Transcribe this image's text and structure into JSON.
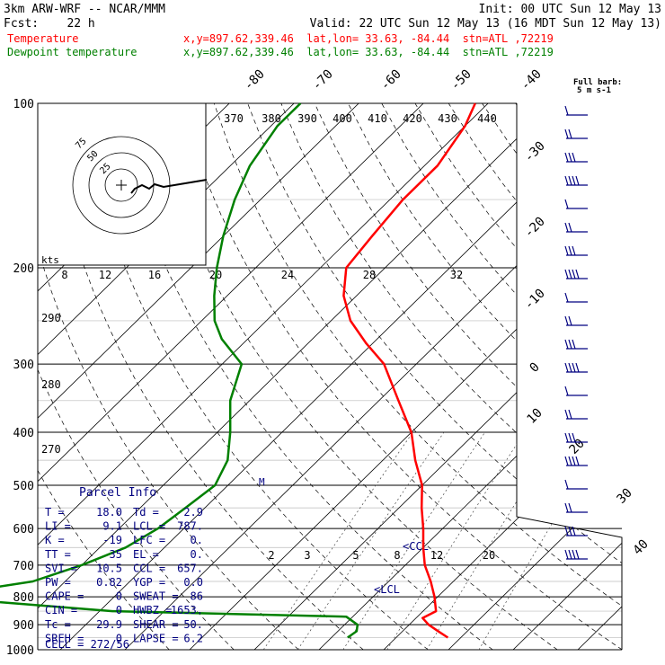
{
  "header": {
    "line1_left": "3km ARW-WRF -- NCAR/MMM",
    "line1_right": "Init: 00 UTC Sun 12 May 13",
    "line2_left": "Fcst:    22 h",
    "line2_right": "Valid: 22 UTC Sun 12 May 13 (16 MDT Sun 12 May 13)",
    "series_rows": [
      {
        "name": "Temperature",
        "info": "x,y=897.62,339.46  lat,lon= 33.63, -84.44  stn=ATL ,72219",
        "color": "#ff0000"
      },
      {
        "name": "Dewpoint temperature",
        "info": "x,y=897.62,339.46  lat,lon= 33.63, -84.44  stn=ATL ,72219",
        "color": "#008000"
      }
    ]
  },
  "barb_legend": {
    "line1": "Full barb:",
    "line2": "5 m s-1"
  },
  "hodograph": {
    "units": "kts",
    "ring_labels": [
      "75",
      "50",
      "25"
    ]
  },
  "colors": {
    "temperature": "#ff0000",
    "dewpoint": "#008000",
    "barbs": "#000080",
    "grid": "#000000"
  },
  "chart_data": {
    "type": "line",
    "pressure_axis": {
      "labels": [
        "100",
        "200",
        "300",
        "400",
        "500",
        "600",
        "700",
        "800",
        "900",
        "1000"
      ]
    },
    "temperature_isotherm_labels": [
      "-80",
      "-70",
      "-60",
      "-50",
      "-40",
      "-30",
      "-20",
      "-10",
      "0",
      "10",
      "20",
      "30",
      "40"
    ],
    "theta_top_labels": [
      "370",
      "380",
      "390",
      "400",
      "410",
      "420",
      "430",
      "440"
    ],
    "mixing_ratio_top_labels": [
      "8",
      "12",
      "16",
      "20",
      "24",
      "28",
      "32"
    ],
    "mixing_ratio_lower_labels": [
      "2",
      "3",
      "5",
      "8",
      "12",
      "20"
    ],
    "theta_side_labels": [
      "290",
      "280",
      "270"
    ],
    "markers": {
      "ccl": "CCL",
      "lcl": "LCL",
      "m": "M"
    },
    "series": [
      {
        "name": "Temperature",
        "color": "#ff0000",
        "points": [
          {
            "p": 950,
            "t": 18.0
          },
          {
            "p": 925,
            "t": 15.5
          },
          {
            "p": 900,
            "t": 13.0
          },
          {
            "p": 875,
            "t": 11.0
          },
          {
            "p": 850,
            "t": 12.0
          },
          {
            "p": 800,
            "t": 9.5
          },
          {
            "p": 750,
            "t": 6.5
          },
          {
            "p": 700,
            "t": 3.0
          },
          {
            "p": 650,
            "t": 0.0
          },
          {
            "p": 600,
            "t": -3.0
          },
          {
            "p": 550,
            "t": -6.5
          },
          {
            "p": 500,
            "t": -10.0
          },
          {
            "p": 450,
            "t": -15.0
          },
          {
            "p": 400,
            "t": -20.0
          },
          {
            "p": 350,
            "t": -27.0
          },
          {
            "p": 300,
            "t": -35.0
          },
          {
            "p": 275,
            "t": -41.0
          },
          {
            "p": 250,
            "t": -47.0
          },
          {
            "p": 225,
            "t": -52.0
          },
          {
            "p": 200,
            "t": -56.0
          },
          {
            "p": 175,
            "t": -57.0
          },
          {
            "p": 150,
            "t": -58.0
          },
          {
            "p": 130,
            "t": -58.0
          },
          {
            "p": 110,
            "t": -60.0
          },
          {
            "p": 100,
            "t": -62.0
          }
        ]
      },
      {
        "name": "Dewpoint temperature",
        "color": "#008000",
        "points": [
          {
            "p": 950,
            "t": 2.5
          },
          {
            "p": 925,
            "t": 2.9
          },
          {
            "p": 900,
            "t": 2.0
          },
          {
            "p": 870,
            "t": -1.0
          },
          {
            "p": 850,
            "t": -38.0
          },
          {
            "p": 800,
            "t": -68.0
          },
          {
            "p": 750,
            "t": -55.0
          },
          {
            "p": 700,
            "t": -50.0
          },
          {
            "p": 650,
            "t": -46.0
          },
          {
            "p": 600,
            "t": -44.0
          },
          {
            "p": 550,
            "t": -43.0
          },
          {
            "p": 500,
            "t": -42.0
          },
          {
            "p": 450,
            "t": -44.0
          },
          {
            "p": 400,
            "t": -48.0
          },
          {
            "p": 350,
            "t": -53.0
          },
          {
            "p": 300,
            "t": -57.0
          },
          {
            "p": 270,
            "t": -64.0
          },
          {
            "p": 250,
            "t": -68.0
          },
          {
            "p": 225,
            "t": -72.0
          },
          {
            "p": 200,
            "t": -76.0
          },
          {
            "p": 175,
            "t": -80.0
          },
          {
            "p": 150,
            "t": -84.0
          },
          {
            "p": 130,
            "t": -87.0
          },
          {
            "p": 110,
            "t": -89.0
          },
          {
            "p": 100,
            "t": -89.0
          }
        ]
      }
    ]
  },
  "parcel_info": {
    "title": "Parcel Info",
    "rows": [
      {
        "l1": "T",
        "v1": "18.0",
        "l2": "Td",
        "v2": "2.9"
      },
      {
        "l1": "LI",
        "v1": "9.1",
        "l2": "LCL",
        "v2": "787."
      },
      {
        "l1": "K",
        "v1": "-19",
        "l2": "LFC",
        "v2": "0."
      },
      {
        "l1": "TT",
        "v1": "35",
        "l2": "EL",
        "v2": "0."
      },
      {
        "l1": "SVI",
        "v1": "10.5",
        "l2": "CCL",
        "v2": "657."
      },
      {
        "l1": "PW",
        "v1": "0.82",
        "l2": "YGP",
        "v2": "0.0"
      },
      {
        "l1": "CAPE",
        "v1": "0",
        "l2": "SWEAT",
        "v2": "86"
      },
      {
        "l1": "CIN",
        "v1": "0",
        "l2": "HWBZ",
        "v2": "1653."
      },
      {
        "l1": "Tc",
        "v1": "29.9",
        "l2": "SHEAR",
        "v2": "50."
      },
      {
        "l1": "SREH",
        "v1": "0",
        "l2": "LAPSE",
        "v2": "6.2"
      }
    ],
    "cell": "CELL = 272/56"
  }
}
